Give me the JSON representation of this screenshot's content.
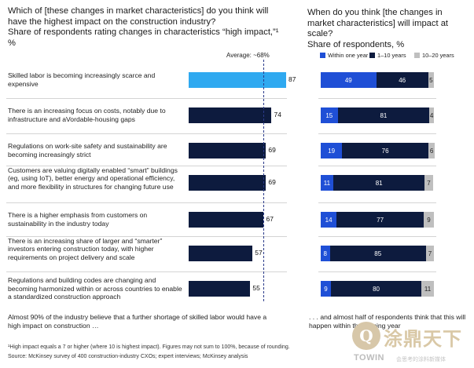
{
  "left_header": {
    "question": "Which of [these changes in market characteristics] do you think will have the highest impact on the construction industry?",
    "subtitle": "Share of respondents rating changes in characteristics “high impact,”¹ %"
  },
  "right_header": {
    "question": "When do you think [the changes in market characteristics] will impact at scale?",
    "subtitle": "Share of respondents, %"
  },
  "average_label": "Average: ~68%",
  "colors": {
    "highlight": "#2fa9f0",
    "dark_navy": "#0d1b3e",
    "blue": "#1f4fd6",
    "grey": "#bfbfbf",
    "avg_line": "#2a3a8a"
  },
  "chart_data": [
    {
      "type": "bar",
      "orientation": "horizontal",
      "categories": [
        "Skilled labor is becoming increasingly scarce and expensive",
        "There is an increasing focus on costs, notably due to infrastructure and aVordable-housing gaps",
        "Regulations on work-site safety and sustainability are becoming increasingly strict",
        "Customers are valuing digitally enabled “smart” buildings (eg, using IoT), better energy and operational efficiency, and more flexibility in structures for changing future use",
        "There is a higher emphasis from customers on sustainability in the industry today",
        "There is an increasing share of larger and “smarter” investors entering construction today, with higher requirements on project delivery and scale",
        "Regulations and building codes are changing and becoming harmonized within or across countries to enable a standardized construction approach"
      ],
      "values": [
        87,
        74,
        69,
        69,
        67,
        57,
        55
      ],
      "reference_line": 68,
      "xlim": [
        0,
        87
      ]
    },
    {
      "type": "bar",
      "orientation": "horizontal",
      "stacked": true,
      "series": [
        {
          "name": "Within one year",
          "values": [
            49,
            15,
            19,
            11,
            14,
            8,
            9
          ]
        },
        {
          "name": "1–10 years",
          "values": [
            46,
            81,
            76,
            81,
            77,
            85,
            80
          ]
        },
        {
          "name": "10–20 years",
          "values": [
            5,
            4,
            6,
            7,
            9,
            7,
            11
          ]
        }
      ],
      "value_labels": [
        [
          "49",
          "46",
          "5"
        ],
        [
          "15",
          "81",
          "4"
        ],
        [
          "19",
          "76",
          "6"
        ],
        [
          "11",
          "81",
          "7"
        ],
        [
          "14",
          "77",
          "9"
        ],
        [
          "8",
          "85",
          "7"
        ],
        [
          "9",
          "80",
          "11"
        ]
      ],
      "xlim": [
        0,
        100
      ]
    }
  ],
  "footer": {
    "left": "Almost 90% of the industry believe that a further shortage of skilled labor would have a high impact on construction …",
    "right": ". . . and almost half of respondents think that this will happen within the coming year"
  },
  "notes": {
    "footnote": "¹High impact equals a 7 or higher (where 10 is highest impact). Figures may not sum to 100%, because of rounding.",
    "source": "Source: McKinsey survey of 400 construction-industry CXOs; expert interviews; McKinsey analysis"
  },
  "watermark": {
    "name": "涂鼎天下",
    "brand": "TOWIN",
    "tagline": "会思考的涂料新媒体"
  }
}
